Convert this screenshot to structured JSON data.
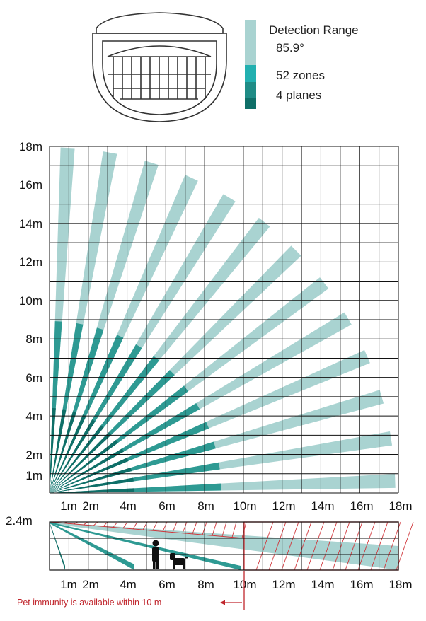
{
  "legend": {
    "detection_range_label": "Detection Range",
    "detection_range_value": "85.9°",
    "zones_label": "52 zones",
    "planes_label": "4 planes"
  },
  "top_chart": {
    "y_ticks": [
      "1m",
      "2m",
      "4m",
      "6m",
      "8m",
      "10m",
      "12m",
      "14m",
      "16m",
      "18m"
    ],
    "x_ticks": [
      "1m",
      "2m",
      "4m",
      "6m",
      "8m",
      "10m",
      "12m",
      "14m",
      "16m",
      "18m"
    ]
  },
  "side_chart": {
    "height_label": "2.4m",
    "x_ticks": [
      "1m",
      "2m",
      "4m",
      "6m",
      "8m",
      "10m",
      "12m",
      "14m",
      "16m",
      "18m"
    ]
  },
  "note": "Pet immunity is available within 10 m",
  "colors": {
    "light": "#a9d3d1",
    "mid": "#2e9a93",
    "dark": "#0f6f68",
    "grid": "#111111",
    "hatch": "#d0353a",
    "note": "#c0262d"
  },
  "icons": [
    "detector-icon",
    "person-icon",
    "dog-icon",
    "arrow-left-icon"
  ]
}
